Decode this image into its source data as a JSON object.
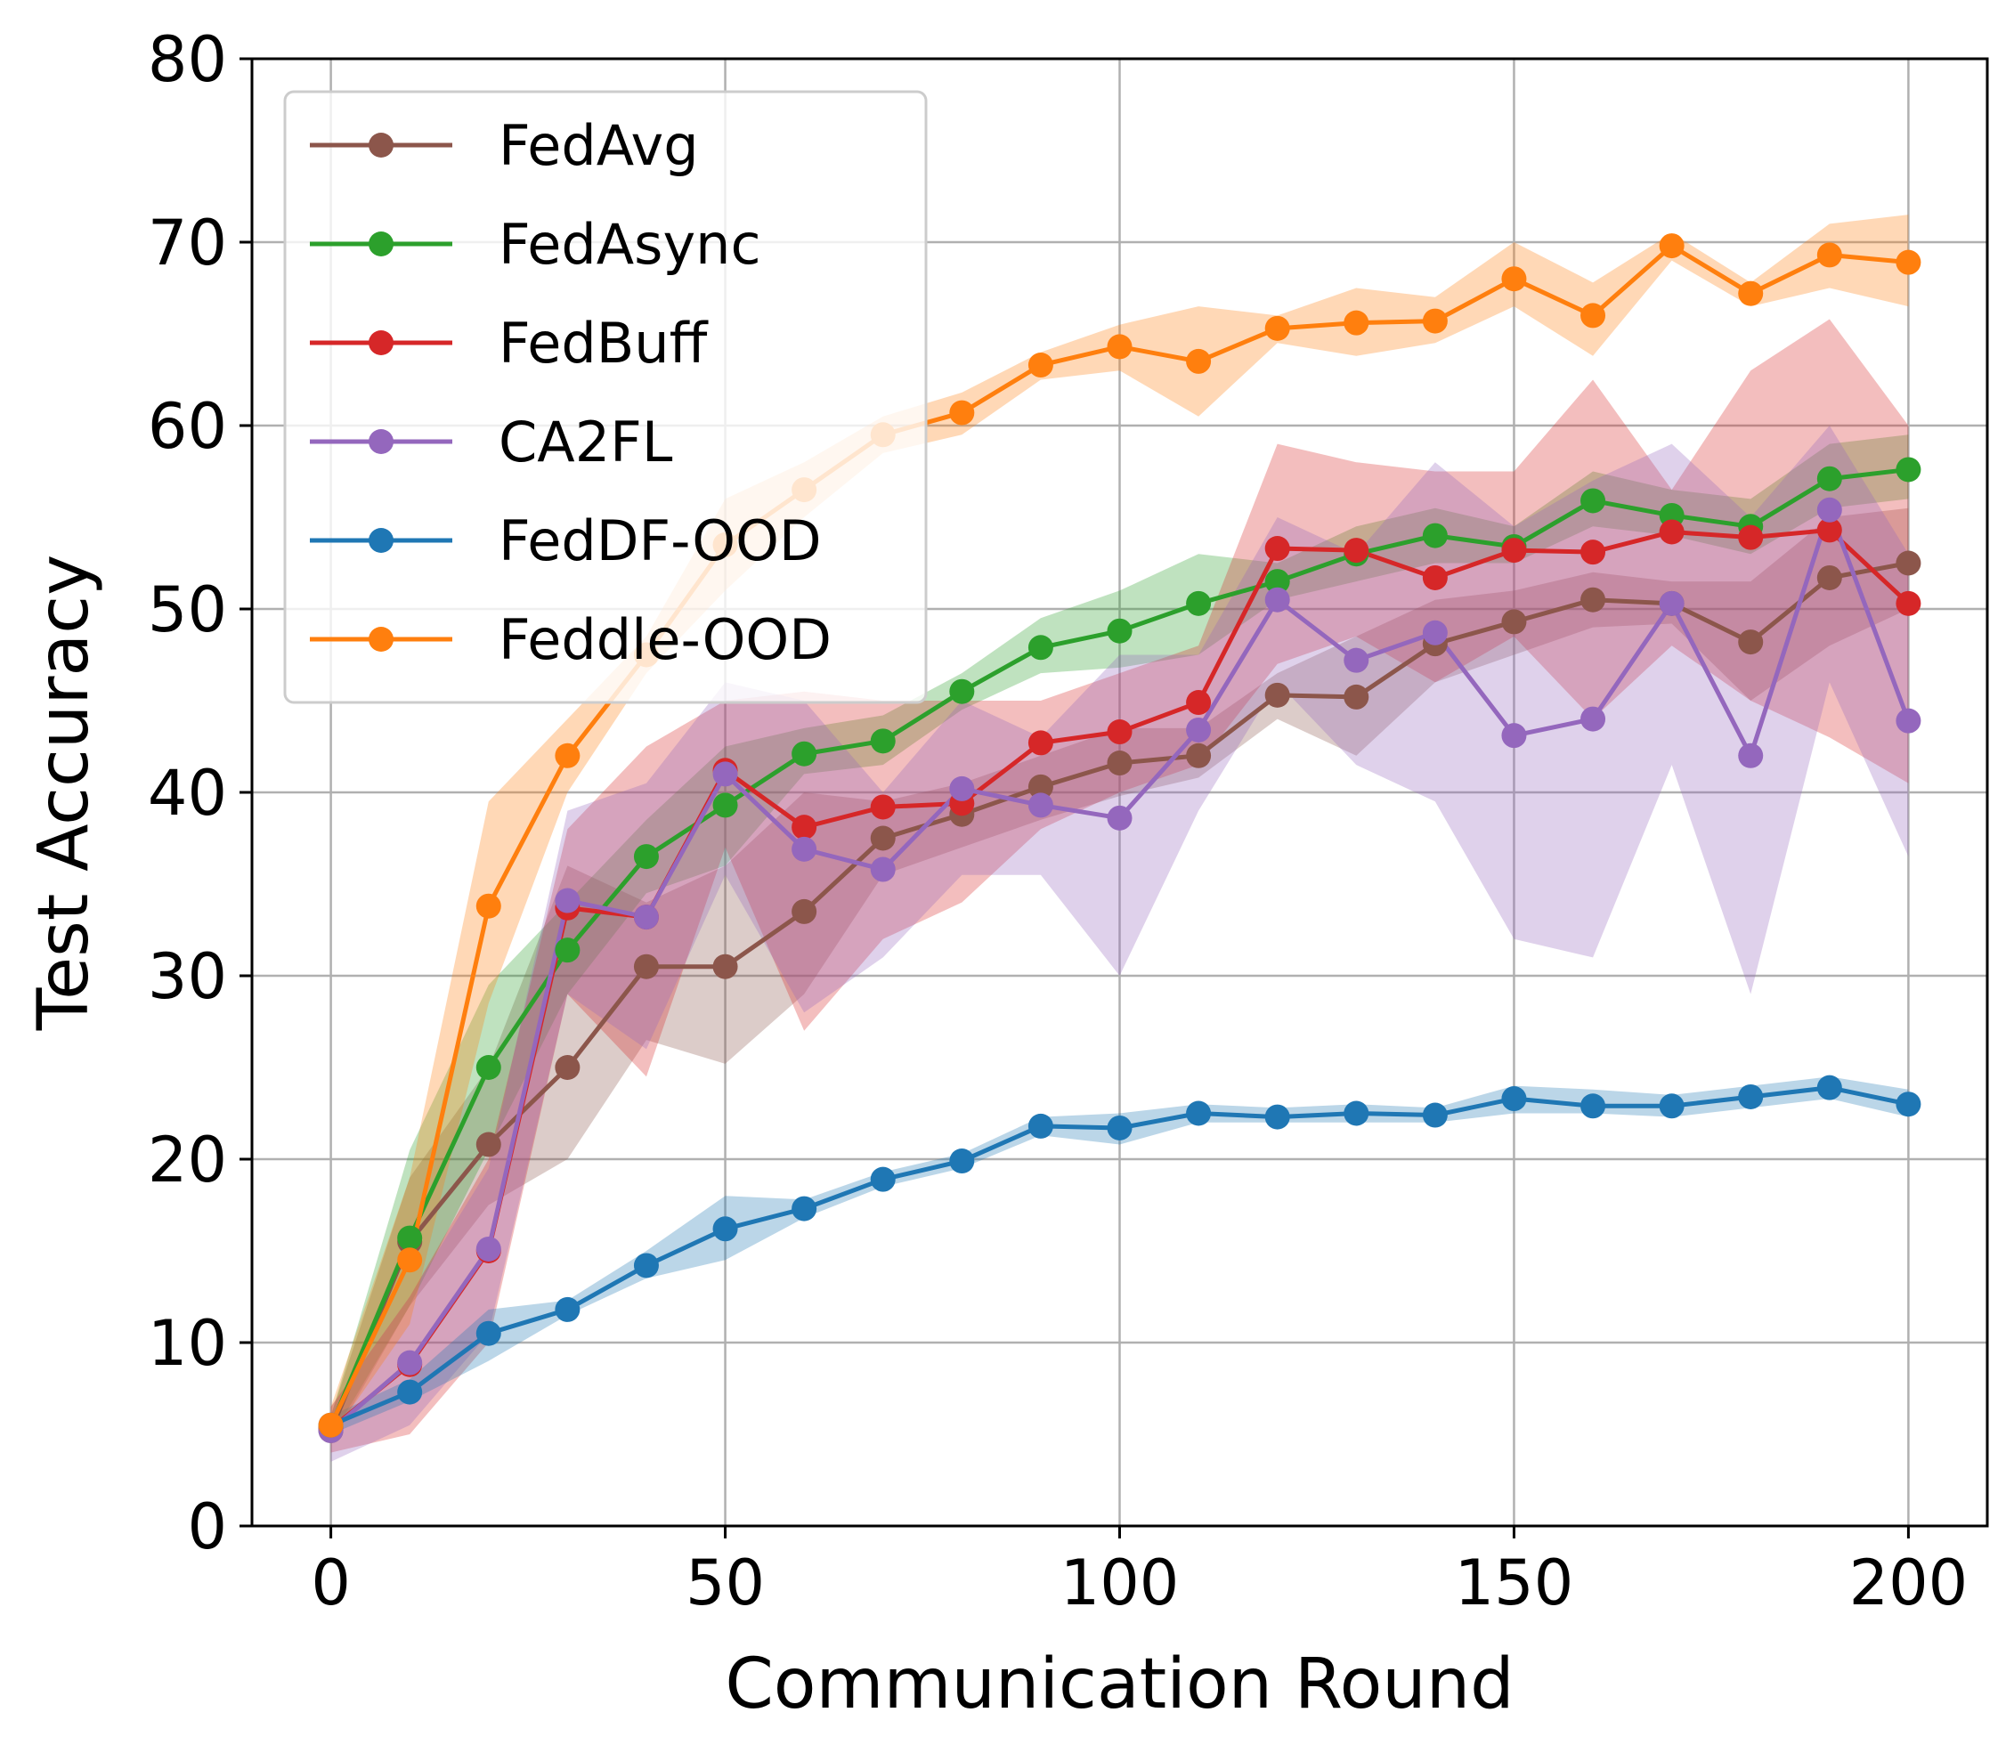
{
  "chart_data": {
    "type": "line",
    "title": "",
    "xlabel": "Communication Round",
    "ylabel": "Test Accuracy",
    "xlim": [
      -10,
      210
    ],
    "ylim": [
      0,
      80
    ],
    "xticks": [
      0,
      50,
      100,
      150,
      200
    ],
    "yticks": [
      0,
      10,
      20,
      30,
      40,
      50,
      60,
      70,
      80
    ],
    "grid": true,
    "legend_position": "upper-left",
    "x": [
      0,
      10,
      20,
      30,
      40,
      50,
      60,
      70,
      80,
      90,
      100,
      110,
      120,
      130,
      140,
      150,
      160,
      170,
      180,
      190,
      200
    ],
    "series": [
      {
        "name": "FedAvg",
        "color": "#8c564b",
        "values": [
          5.2,
          15.5,
          20.8,
          25.0,
          30.5,
          30.5,
          33.5,
          37.5,
          38.8,
          40.3,
          41.6,
          42.0,
          45.3,
          45.2,
          48.1,
          49.3,
          50.5,
          50.3,
          48.2,
          51.7,
          52.5
        ],
        "lower": [
          4.5,
          12.0,
          17.5,
          20.0,
          26.5,
          25.2,
          29.0,
          35.5,
          37.0,
          38.5,
          39.8,
          40.8,
          44.0,
          42.0,
          46.0,
          47.5,
          49.0,
          49.2,
          45.0,
          48.0,
          50.0
        ],
        "upper": [
          6.0,
          19.0,
          25.0,
          36.0,
          34.0,
          36.0,
          40.0,
          39.5,
          40.5,
          42.0,
          43.5,
          43.5,
          46.5,
          48.5,
          50.5,
          51.0,
          52.0,
          51.5,
          51.5,
          55.0,
          55.5
        ]
      },
      {
        "name": "FedAsync",
        "color": "#2ca02c",
        "values": [
          5.4,
          15.7,
          25.0,
          31.4,
          36.5,
          39.3,
          42.1,
          42.8,
          45.5,
          47.9,
          48.8,
          50.3,
          51.5,
          53.0,
          54.0,
          53.4,
          55.9,
          55.1,
          54.5,
          57.1,
          57.6
        ],
        "lower": [
          4.8,
          12.0,
          20.5,
          29.0,
          34.5,
          36.0,
          41.0,
          41.5,
          44.5,
          46.5,
          46.8,
          47.5,
          50.5,
          51.5,
          52.5,
          52.5,
          54.5,
          54.0,
          53.0,
          55.5,
          56.0
        ],
        "upper": [
          6.0,
          20.5,
          29.5,
          34.0,
          38.5,
          42.5,
          43.5,
          44.2,
          46.5,
          49.5,
          51.0,
          53.0,
          52.5,
          54.5,
          55.5,
          54.5,
          57.5,
          56.5,
          56.0,
          59.0,
          59.5
        ]
      },
      {
        "name": "FedBuff",
        "color": "#d62728",
        "values": [
          5.3,
          8.8,
          15.0,
          33.7,
          33.2,
          41.2,
          38.1,
          39.2,
          39.4,
          42.7,
          43.3,
          44.9,
          53.3,
          53.2,
          51.7,
          53.2,
          53.1,
          54.2,
          53.9,
          54.3,
          50.3
        ],
        "lower": [
          4.0,
          5.0,
          10.0,
          29.0,
          24.5,
          37.0,
          27.0,
          32.0,
          34.0,
          38.0,
          40.0,
          41.5,
          47.0,
          48.5,
          46.0,
          48.5,
          44.0,
          48.0,
          45.0,
          43.0,
          40.5
        ],
        "upper": [
          6.5,
          12.5,
          20.0,
          38.0,
          42.5,
          45.0,
          45.5,
          45.0,
          45.0,
          45.0,
          46.5,
          48.0,
          59.0,
          58.0,
          57.5,
          57.5,
          62.5,
          56.5,
          63.0,
          65.8,
          60.0
        ]
      },
      {
        "name": "CA2FL",
        "color": "#9467bd",
        "values": [
          5.2,
          8.9,
          15.1,
          34.1,
          33.2,
          41.0,
          36.9,
          35.8,
          40.2,
          39.3,
          38.6,
          43.4,
          50.5,
          47.2,
          48.7,
          43.1,
          44.0,
          50.3,
          42.0,
          55.4,
          43.9
        ],
        "lower": [
          3.5,
          5.5,
          10.5,
          29.0,
          26.0,
          35.5,
          28.0,
          31.0,
          35.5,
          35.5,
          30.0,
          39.0,
          46.0,
          41.5,
          39.5,
          32.0,
          31.0,
          41.5,
          29.0,
          46.0,
          36.5
        ],
        "upper": [
          6.5,
          12.5,
          19.5,
          39.0,
          40.5,
          46.0,
          45.0,
          40.0,
          45.0,
          43.0,
          47.5,
          47.5,
          55.0,
          53.0,
          58.0,
          54.5,
          57.0,
          59.0,
          55.0,
          60.0,
          53.0
        ]
      },
      {
        "name": "FedDF-OOD",
        "color": "#1f77b4",
        "values": [
          5.5,
          7.3,
          10.5,
          11.8,
          14.2,
          16.2,
          17.3,
          18.9,
          19.9,
          21.8,
          21.7,
          22.5,
          22.3,
          22.5,
          22.4,
          23.3,
          22.9,
          22.9,
          23.4,
          23.9,
          23.0
        ],
        "lower": [
          5.0,
          6.8,
          9.0,
          11.5,
          13.5,
          14.5,
          16.8,
          18.5,
          19.5,
          21.3,
          20.8,
          22.0,
          22.0,
          22.0,
          22.0,
          22.5,
          22.5,
          22.3,
          22.8,
          23.3,
          22.3
        ],
        "upper": [
          6.0,
          8.0,
          11.8,
          12.3,
          15.0,
          18.0,
          17.8,
          19.3,
          20.3,
          22.3,
          22.5,
          23.0,
          22.8,
          23.0,
          22.8,
          24.0,
          23.8,
          23.5,
          24.0,
          24.5,
          23.8
        ]
      },
      {
        "name": "Feddle-OOD",
        "color": "#ff7f0e",
        "values": [
          5.5,
          14.5,
          33.8,
          42.0,
          47.5,
          53.5,
          56.5,
          59.5,
          60.7,
          63.3,
          64.3,
          63.5,
          65.3,
          65.6,
          65.7,
          68.0,
          66.0,
          69.8,
          67.2,
          69.3,
          68.9
        ],
        "lower": [
          4.8,
          11.0,
          28.5,
          40.0,
          46.5,
          51.0,
          55.0,
          58.5,
          59.5,
          62.5,
          63.0,
          60.5,
          64.5,
          63.8,
          64.5,
          66.5,
          63.8,
          69.0,
          66.5,
          67.5,
          66.5
        ],
        "upper": [
          6.5,
          19.0,
          39.5,
          44.0,
          48.5,
          56.0,
          58.0,
          60.5,
          61.8,
          64.0,
          65.5,
          66.5,
          66.0,
          67.5,
          67.0,
          70.0,
          67.8,
          70.5,
          67.8,
          71.0,
          71.5
        ]
      }
    ]
  }
}
